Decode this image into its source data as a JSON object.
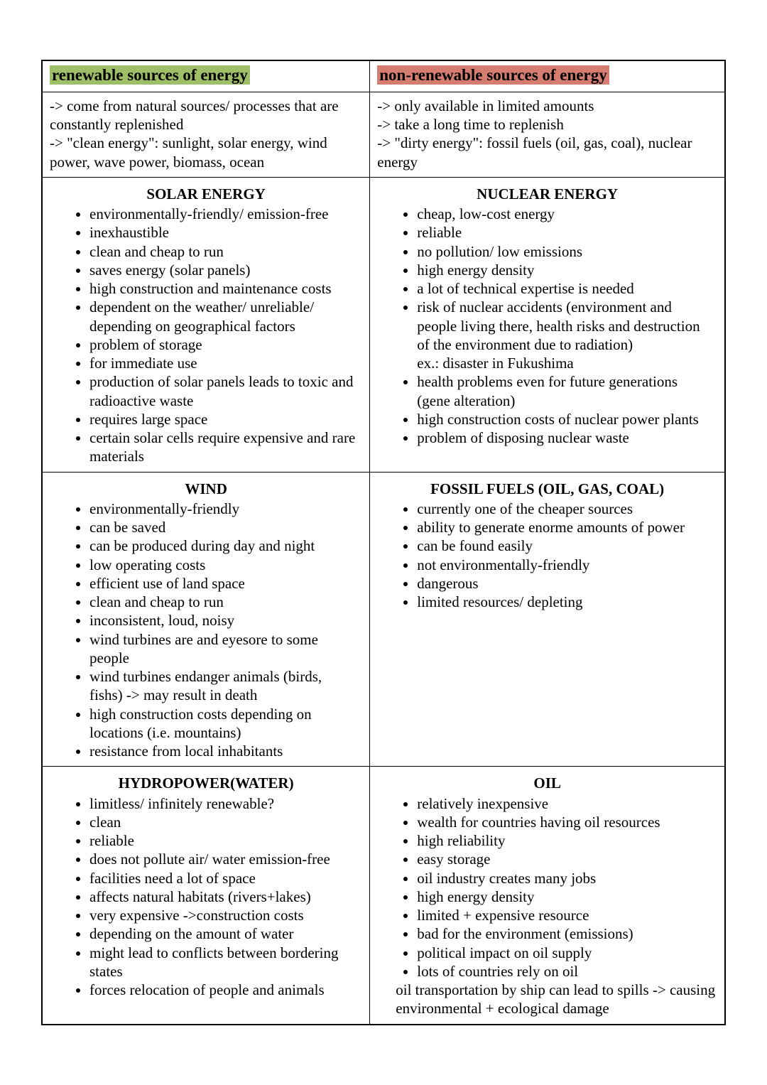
{
  "colors": {
    "renewable_highlight": "#9fbe68",
    "nonrenewable_highlight": "#d47d70",
    "border": "#000000",
    "text": "#000000",
    "background": "#ffffff"
  },
  "left": {
    "header": "renewable sources of energy",
    "intro": [
      "-> come from natural sources/ processes that are constantly replenished",
      "-> \"clean energy\": sunlight, solar energy, wind power, wave power, biomass, ocean"
    ],
    "sections": [
      {
        "title": "SOLAR ENERGY",
        "bullets": [
          "environmentally-friendly/ emission-free",
          "inexhaustible",
          "clean and cheap to run",
          "saves energy (solar panels)",
          "high construction and maintenance costs",
          "dependent on the weather/ unreliable/ depending on geographical factors",
          "problem of storage",
          "for immediate use",
          "production of solar panels leads to toxic and radioactive waste",
          "requires large space",
          "certain solar cells require expensive and rare materials"
        ]
      },
      {
        "title": "WIND",
        "bullets": [
          "environmentally-friendly",
          "can be saved",
          "can be produced during day and night",
          "low operating costs",
          "efficient use of land space",
          "clean and cheap to run",
          "inconsistent, loud, noisy",
          "wind turbines are and eyesore to some people",
          "wind turbines endanger animals (birds, fishs) -> may result in death",
          "high construction costs depending on locations (i.e. mountains)",
          "resistance from local inhabitants"
        ]
      },
      {
        "title": "HYDROPOWER(WATER)",
        "bullets": [
          "limitless/ infinitely renewable?",
          "clean",
          "reliable",
          "does not pollute air/ water emission-free",
          "facilities need a lot of space",
          "affects natural habitats (rivers+lakes)",
          "very expensive ->construction costs",
          "depending on the amount of water",
          "might lead to conflicts between bordering states",
          "forces relocation of people and animals"
        ]
      }
    ]
  },
  "right": {
    "header": "non-renewable sources of energy",
    "intro": [
      "-> only available in limited amounts",
      "-> take a long time to replenish",
      "-> \"dirty energy\": fossil fuels (oil, gas, coal), nuclear energy"
    ],
    "sections": [
      {
        "title": "NUCLEAR ENERGY",
        "bullets": [
          "cheap, low-cost energy",
          "reliable",
          "no pollution/ low emissions",
          "high energy density",
          "a lot of technical expertise is needed",
          "risk of nuclear accidents (environment and people living there, health risks and destruction of the environment due to radiation)\nex.: disaster in Fukushima",
          "health problems even for future generations (gene alteration)",
          "high construction costs of nuclear power plants",
          "problem of disposing nuclear waste"
        ]
      },
      {
        "title": "FOSSIL FUELS (OIL, GAS, COAL)",
        "bullets": [
          "currently one of the cheaper sources",
          "ability to generate enorme amounts of power",
          "can be found easily",
          "not environmentally-friendly",
          "dangerous",
          "limited resources/ depleting"
        ]
      },
      {
        "title": "OIL",
        "bullets": [
          "relatively inexpensive",
          "wealth for countries having oil resources",
          "high reliability",
          "easy storage",
          "oil industry creates many jobs",
          "high energy density",
          "limited + expensive resource",
          "bad for the environment (emissions)",
          "political impact on oil supply",
          "lots of countries rely on oil"
        ],
        "after": "oil transportation by ship can lead to spills -> causing environmental + ecological damage"
      }
    ]
  }
}
